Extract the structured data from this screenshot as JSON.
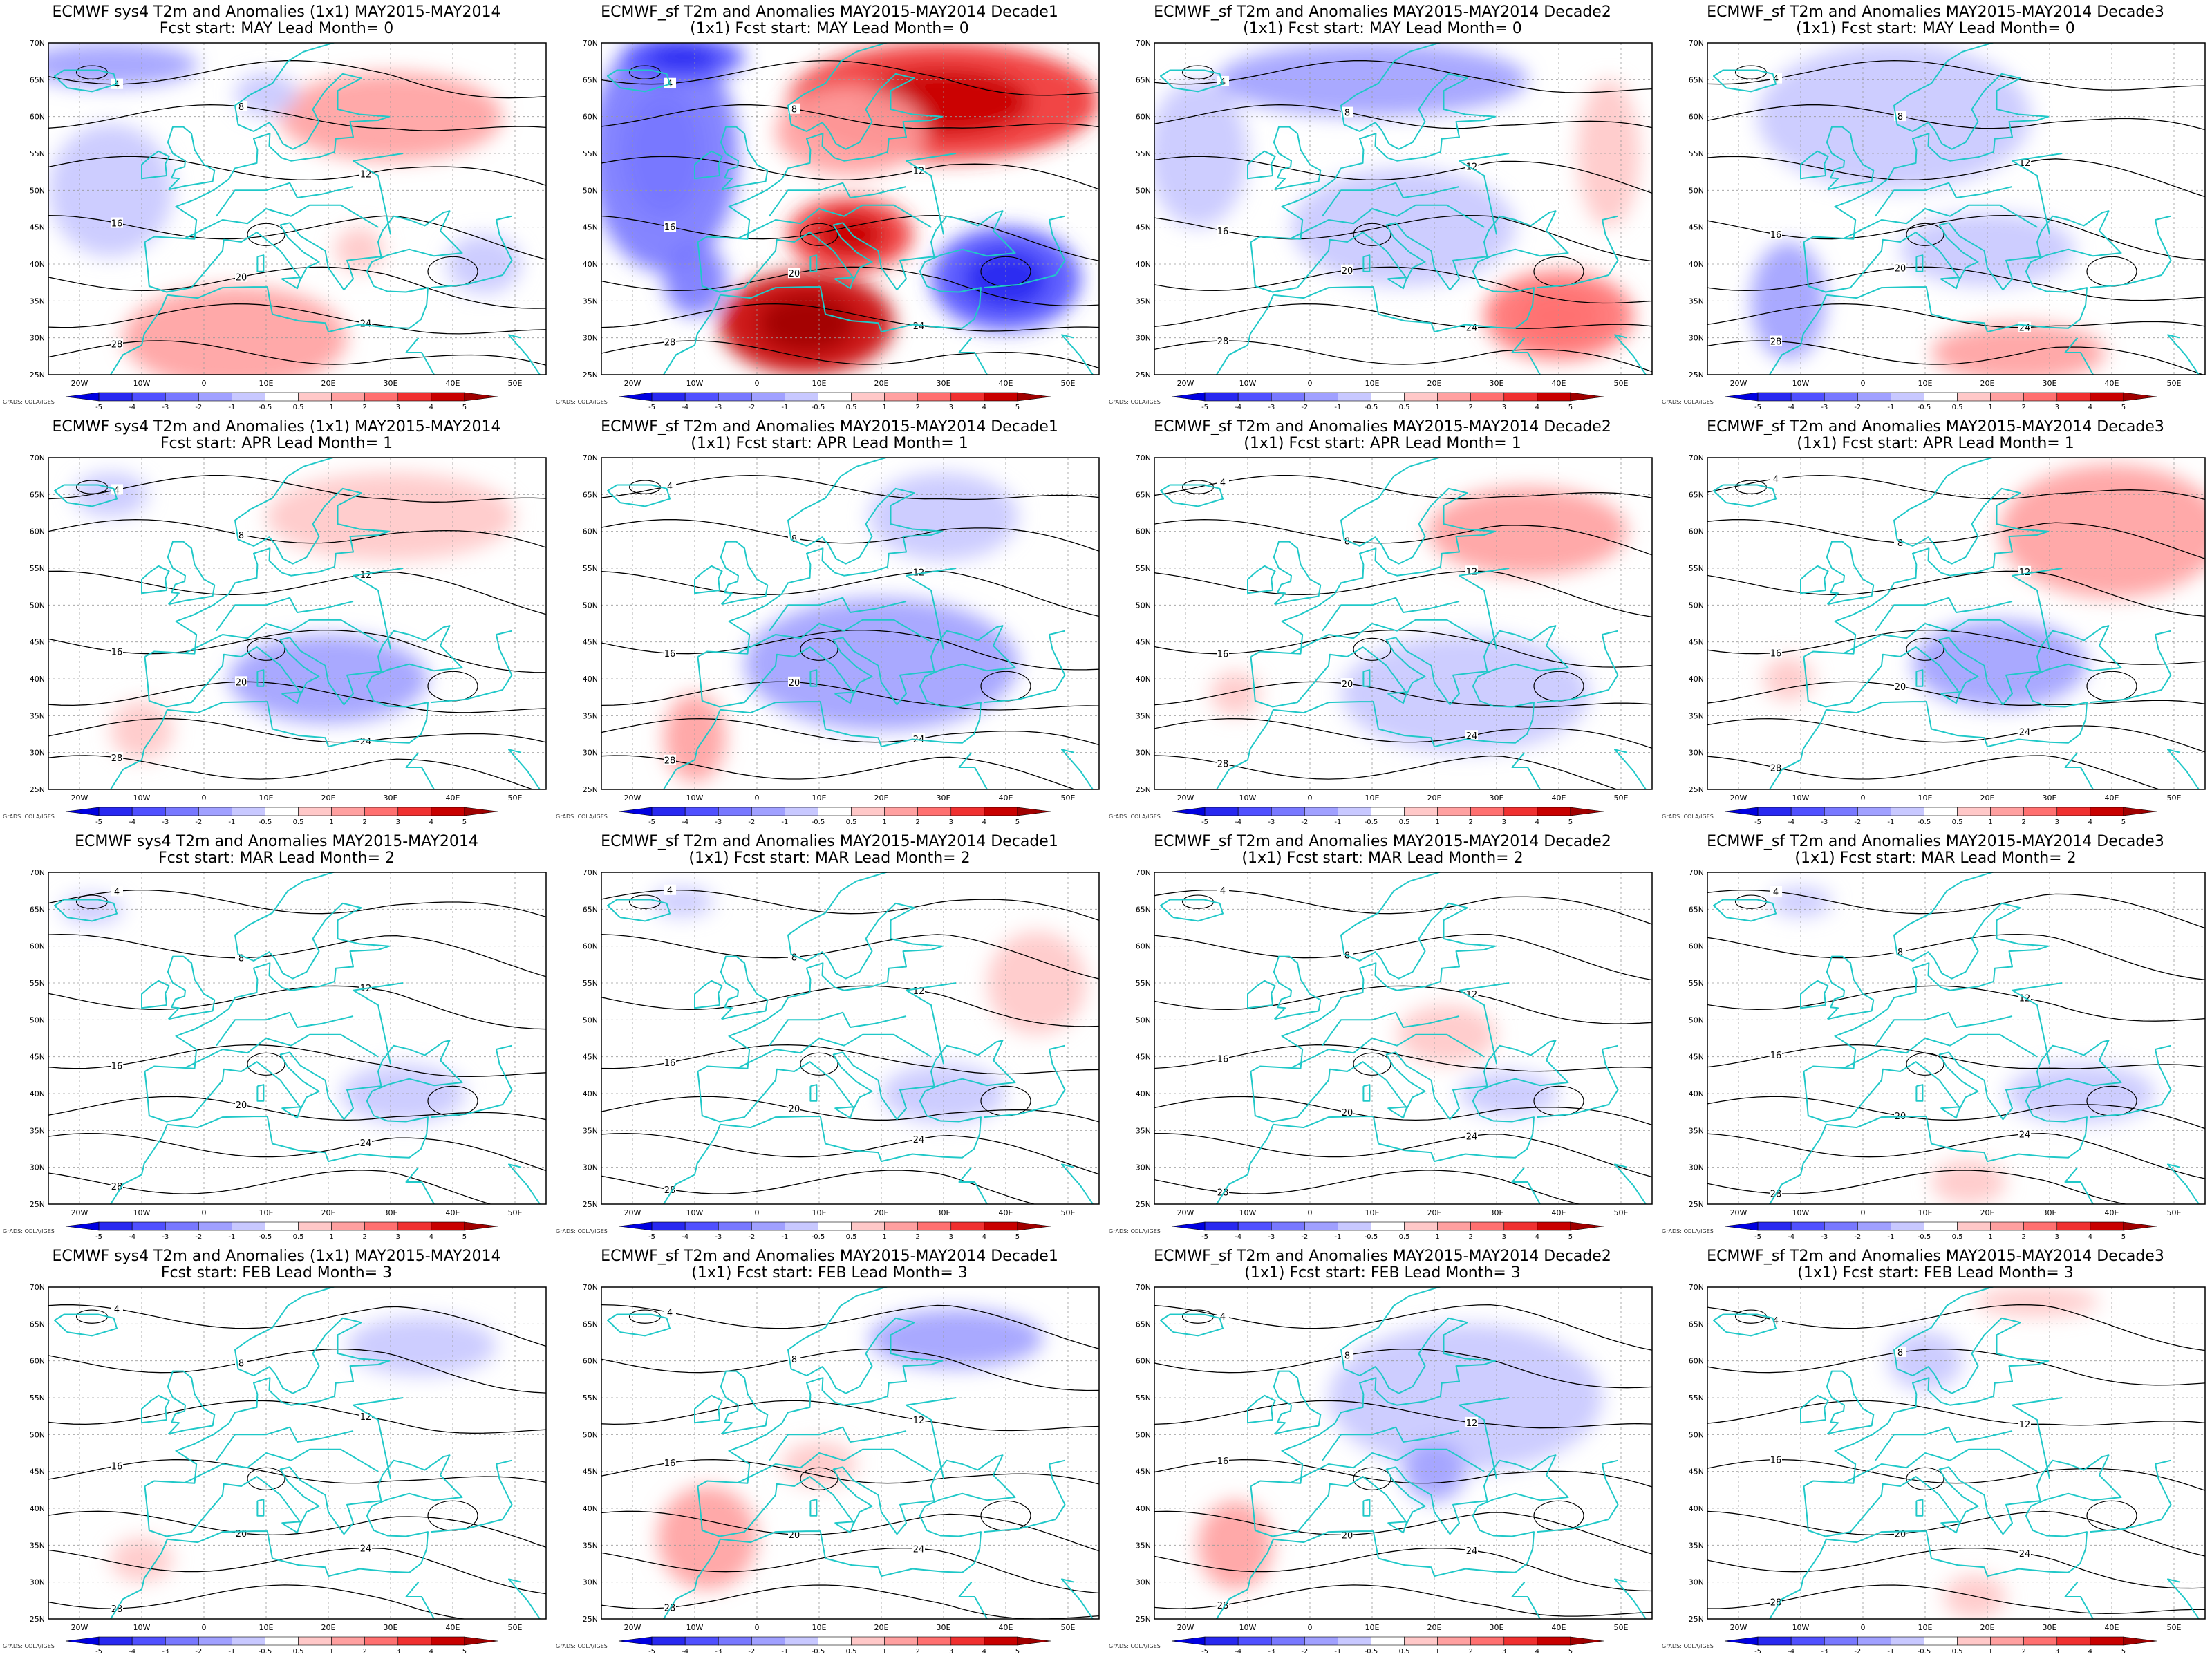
{
  "labels": {
    "lon_ticks": [
      "20W",
      "10W",
      "0",
      "10E",
      "20E",
      "30E",
      "40E",
      "50E"
    ],
    "lat_ticks": [
      "70N",
      "65N",
      "60N",
      "55N",
      "50N",
      "45N",
      "40N",
      "35N",
      "30N",
      "25N"
    ],
    "colorbar_ticks": [
      "-5",
      "-4",
      "-3",
      "-2",
      "-1",
      "-0.5",
      "0.5",
      "1",
      "2",
      "3",
      "4",
      "5"
    ],
    "credit": "GrADS: COLA/IGES"
  },
  "colors": {
    "anomaly_scale": [
      "#0000e0",
      "#2828f0",
      "#5050ff",
      "#7878ff",
      "#a0a0ff",
      "#c8c8ff",
      "#ffffff",
      "#ffc8c8",
      "#ffa0a0",
      "#ff7070",
      "#f03030",
      "#c80000",
      "#a00000"
    ],
    "coast": "#20c8c8",
    "contour": "#000000"
  },
  "panels": [
    {
      "id": "r0c0",
      "title1": "ECMWF sys4 T2m and Anomalies (1x1) MAY2015-MAY2014",
      "title2": "Fcst start: MAY  Lead Month= 0",
      "contours": [
        "4",
        "8",
        "12",
        "16",
        "20",
        "24",
        "28"
      ],
      "anoms": [
        {
          "lon": 30,
          "lat": 60,
          "v": 1.2,
          "rlon": 18,
          "rlat": 6
        },
        {
          "lon": 5,
          "lat": 30,
          "v": 1.6,
          "rlon": 18,
          "rlat": 7
        },
        {
          "lon": -15,
          "lat": 50,
          "v": -0.8,
          "rlon": 10,
          "rlat": 9
        },
        {
          "lon": -15,
          "lat": 67,
          "v": -1.3,
          "rlon": 14,
          "rlat": 3
        },
        {
          "lon": 45,
          "lat": 40,
          "v": -0.9,
          "rlon": 6,
          "rlat": 4
        },
        {
          "lon": 10,
          "lat": 63,
          "v": -0.7,
          "rlon": 5,
          "rlat": 3
        },
        {
          "lon": 25,
          "lat": 42,
          "v": 0.8,
          "rlon": 4,
          "rlat": 3
        }
      ]
    },
    {
      "id": "r0c1",
      "title1": "ECMWF_sf T2m and Anomalies MAY2015-MAY2014 Decade1",
      "title2": "(1x1) Fcst start: MAY  Lead Month= 0",
      "contours": [
        "4",
        "8",
        "12",
        "16",
        "20",
        "24",
        "28"
      ],
      "anoms": [
        {
          "lon": 30,
          "lat": 62,
          "v": 3.2,
          "rlon": 25,
          "rlat": 8
        },
        {
          "lon": 8,
          "lat": 32,
          "v": 4.6,
          "rlon": 14,
          "rlat": 7
        },
        {
          "lon": 15,
          "lat": 44,
          "v": 3.2,
          "rlon": 10,
          "rlat": 5
        },
        {
          "lon": -15,
          "lat": 55,
          "v": -2.2,
          "rlon": 12,
          "rlat": 16
        },
        {
          "lon": -12,
          "lat": 68,
          "v": -3.2,
          "rlon": 10,
          "rlat": 3
        },
        {
          "lon": 40,
          "lat": 38,
          "v": -3.4,
          "rlon": 12,
          "rlat": 7
        },
        {
          "lon": 15,
          "lat": 58,
          "v": 1.2,
          "rlon": 12,
          "rlat": 6
        },
        {
          "lon": -10,
          "lat": 38,
          "v": -2.0,
          "rlon": 5,
          "rlat": 5
        }
      ]
    },
    {
      "id": "r0c2",
      "title1": "ECMWF_sf T2m and Anomalies MAY2015-MAY2014 Decade2",
      "title2": "(1x1) Fcst start: MAY  Lead Month= 0",
      "contours": [
        "4",
        "8",
        "12",
        "16",
        "20",
        "24",
        "28"
      ],
      "anoms": [
        {
          "lon": 10,
          "lat": 65,
          "v": -1.2,
          "rlon": 25,
          "rlat": 5
        },
        {
          "lon": 40,
          "lat": 33,
          "v": 2.2,
          "rlon": 12,
          "rlat": 6
        },
        {
          "lon": 15,
          "lat": 45,
          "v": -0.8,
          "rlon": 18,
          "rlat": 8
        },
        {
          "lon": -18,
          "lat": 55,
          "v": -0.7,
          "rlon": 8,
          "rlat": 10
        },
        {
          "lon": 48,
          "lat": 55,
          "v": 0.9,
          "rlon": 5,
          "rlat": 10
        }
      ]
    },
    {
      "id": "r0c3",
      "title1": "ECMWF_sf T2m and Anomalies MAY2015-MAY2014 Decade3",
      "title2": "(1x1) Fcst start: MAY  Lead Month= 0",
      "contours": [
        "4",
        "8",
        "12",
        "16",
        "20",
        "24",
        "28"
      ],
      "anoms": [
        {
          "lon": 5,
          "lat": 60,
          "v": -0.9,
          "rlon": 22,
          "rlat": 10
        },
        {
          "lon": -12,
          "lat": 35,
          "v": -1.3,
          "rlon": 6,
          "rlat": 8
        },
        {
          "lon": 25,
          "lat": 28,
          "v": 1.2,
          "rlon": 14,
          "rlat": 4
        },
        {
          "lon": 20,
          "lat": 42,
          "v": -0.7,
          "rlon": 14,
          "rlat": 5
        }
      ]
    },
    {
      "id": "r1c0",
      "title1": "ECMWF sys4 T2m and Anomalies (1x1) MAY2015-MAY2014",
      "title2": "Fcst start: APR  Lead Month= 1",
      "contours": [
        "4",
        "8",
        "12",
        "16",
        "20",
        "24",
        "28"
      ],
      "anoms": [
        {
          "lon": 30,
          "lat": 62,
          "v": 0.9,
          "rlon": 20,
          "rlat": 6
        },
        {
          "lon": 20,
          "lat": 40,
          "v": -1.1,
          "rlon": 16,
          "rlat": 6
        },
        {
          "lon": -10,
          "lat": 33,
          "v": 0.8,
          "rlon": 5,
          "rlat": 4
        },
        {
          "lon": -15,
          "lat": 65,
          "v": -0.7,
          "rlon": 6,
          "rlat": 3
        }
      ]
    },
    {
      "id": "r1c1",
      "title1": "ECMWF_sf T2m and Anomalies MAY2015-MAY2014 Decade1",
      "title2": "(1x1) Fcst start: APR  Lead Month= 1",
      "contours": [
        "4",
        "8",
        "12",
        "16",
        "20",
        "24",
        "28"
      ],
      "anoms": [
        {
          "lon": 20,
          "lat": 42,
          "v": -1.5,
          "rlon": 22,
          "rlat": 9
        },
        {
          "lon": -10,
          "lat": 32,
          "v": 1.2,
          "rlon": 5,
          "rlat": 6
        },
        {
          "lon": 30,
          "lat": 62,
          "v": -0.7,
          "rlon": 12,
          "rlat": 6
        }
      ]
    },
    {
      "id": "r1c2",
      "title1": "ECMWF_sf T2m and Anomalies MAY2015-MAY2014 Decade2",
      "title2": "(1x1) Fcst start: APR  Lead Month= 1",
      "contours": [
        "4",
        "8",
        "12",
        "16",
        "20",
        "24",
        "28"
      ],
      "anoms": [
        {
          "lon": 35,
          "lat": 60,
          "v": 1.2,
          "rlon": 16,
          "rlat": 6
        },
        {
          "lon": 25,
          "lat": 38,
          "v": -0.9,
          "rlon": 20,
          "rlat": 8
        },
        {
          "lon": -12,
          "lat": 38,
          "v": 1.0,
          "rlon": 4,
          "rlat": 3
        }
      ]
    },
    {
      "id": "r1c3",
      "title1": "ECMWF_sf T2m and Anomalies MAY2015-MAY2014 Decade3",
      "title2": "(1x1) Fcst start: APR  Lead Month= 1",
      "contours": [
        "4",
        "8",
        "12",
        "16",
        "20",
        "24",
        "28"
      ],
      "anoms": [
        {
          "lon": 40,
          "lat": 60,
          "v": 1.6,
          "rlon": 18,
          "rlat": 9
        },
        {
          "lon": 22,
          "lat": 42,
          "v": -1.3,
          "rlon": 14,
          "rlat": 6
        },
        {
          "lon": -12,
          "lat": 40,
          "v": 0.9,
          "rlon": 4,
          "rlat": 3
        }
      ]
    },
    {
      "id": "r2c0",
      "title1": "ECMWF sys4 T2m and Anomalies MAY2015-MAY2014",
      "title2": "Fcst start: MAR  Lead Month= 2",
      "contours": [
        "4",
        "8",
        "12",
        "16",
        "20",
        "24",
        "28"
      ],
      "anoms": [
        {
          "lon": 32,
          "lat": 40,
          "v": -0.8,
          "rlon": 10,
          "rlat": 4
        },
        {
          "lon": -18,
          "lat": 65,
          "v": -0.6,
          "rlon": 5,
          "rlat": 2
        }
      ]
    },
    {
      "id": "r2c1",
      "title1": "ECMWF_sf T2m and Anomalies MAY2015-MAY2014 Decade1",
      "title2": "(1x1) Fcst start: MAR  Lead Month= 2",
      "contours": [
        "4",
        "8",
        "12",
        "16",
        "20",
        "24",
        "28"
      ],
      "anoms": [
        {
          "lon": 45,
          "lat": 55,
          "v": 0.8,
          "rlon": 8,
          "rlat": 7
        },
        {
          "lon": 30,
          "lat": 40,
          "v": -0.7,
          "rlon": 10,
          "rlat": 4
        },
        {
          "lon": -12,
          "lat": 66,
          "v": -0.6,
          "rlon": 5,
          "rlat": 2
        }
      ]
    },
    {
      "id": "r2c2",
      "title1": "ECMWF_sf T2m and Anomalies MAY2015-MAY2014 Decade2",
      "title2": "(1x1) Fcst start: MAR  Lead Month= 2",
      "contours": [
        "4",
        "8",
        "12",
        "16",
        "20",
        "24",
        "28"
      ],
      "anoms": [
        {
          "lon": 22,
          "lat": 48,
          "v": 0.6,
          "rlon": 8,
          "rlat": 4
        },
        {
          "lon": 32,
          "lat": 40,
          "v": -0.6,
          "rlon": 8,
          "rlat": 3
        }
      ]
    },
    {
      "id": "r2c3",
      "title1": "ECMWF_sf T2m and Anomalies MAY2015-MAY2014 Decade3",
      "title2": "(1x1) Fcst start: MAR  Lead Month= 2",
      "contours": [
        "4",
        "8",
        "12",
        "16",
        "20",
        "24",
        "28"
      ],
      "anoms": [
        {
          "lon": 35,
          "lat": 40,
          "v": -0.8,
          "rlon": 12,
          "rlat": 4
        },
        {
          "lon": 17,
          "lat": 28,
          "v": 1.0,
          "rlon": 6,
          "rlat": 3
        },
        {
          "lon": -10,
          "lat": 66,
          "v": -0.6,
          "rlon": 5,
          "rlat": 2
        }
      ]
    },
    {
      "id": "r3c0",
      "title1": "ECMWF sys4 T2m and Anomalies (1x1) MAY2015-MAY2014",
      "title2": "Fcst start: FEB  Lead Month= 3",
      "contours": [
        "4",
        "8",
        "12",
        "16",
        "20",
        "24",
        "28"
      ],
      "anoms": [
        {
          "lon": 35,
          "lat": 62,
          "v": -0.8,
          "rlon": 12,
          "rlat": 4
        },
        {
          "lon": -10,
          "lat": 33,
          "v": 0.8,
          "rlon": 5,
          "rlat": 3
        }
      ]
    },
    {
      "id": "r3c1",
      "title1": "ECMWF_sf T2m and Anomalies MAY2015-MAY2014 Decade1",
      "title2": "(1x1) Fcst start: FEB  Lead Month= 3",
      "contours": [
        "4",
        "8",
        "12",
        "16",
        "20",
        "24",
        "28"
      ],
      "anoms": [
        {
          "lon": 32,
          "lat": 63,
          "v": -1.6,
          "rlon": 14,
          "rlat": 4
        },
        {
          "lon": -8,
          "lat": 36,
          "v": 1.3,
          "rlon": 8,
          "rlat": 7
        },
        {
          "lon": 10,
          "lat": 46,
          "v": 0.6,
          "rlon": 6,
          "rlat": 3
        }
      ]
    },
    {
      "id": "r3c2",
      "title1": "ECMWF_sf T2m and Anomalies MAY2015-MAY2014 Decade2",
      "title2": "(1x1) Fcst start: FEB  Lead Month= 3",
      "contours": [
        "4",
        "8",
        "12",
        "16",
        "20",
        "24",
        "28"
      ],
      "anoms": [
        {
          "lon": 25,
          "lat": 55,
          "v": -0.8,
          "rlon": 22,
          "rlat": 10
        },
        {
          "lon": -12,
          "lat": 35,
          "v": 1.3,
          "rlon": 6,
          "rlat": 6
        },
        {
          "lon": 20,
          "lat": 45,
          "v": -1.1,
          "rlon": 5,
          "rlat": 4
        }
      ]
    },
    {
      "id": "r3c3",
      "title1": "ECMWF_sf T2m and Anomalies MAY2015-MAY2014 Decade3",
      "title2": "(1x1) Fcst start: FEB  Lead Month= 3",
      "contours": [
        "4",
        "8",
        "12",
        "16",
        "20",
        "24",
        "28"
      ],
      "anoms": [
        {
          "lon": 28,
          "lat": 68,
          "v": 0.6,
          "rlon": 10,
          "rlat": 2
        },
        {
          "lon": 10,
          "lat": 60,
          "v": -0.6,
          "rlon": 6,
          "rlat": 4
        },
        {
          "lon": 18,
          "lat": 28,
          "v": 0.8,
          "rlon": 5,
          "rlat": 3
        }
      ]
    }
  ]
}
